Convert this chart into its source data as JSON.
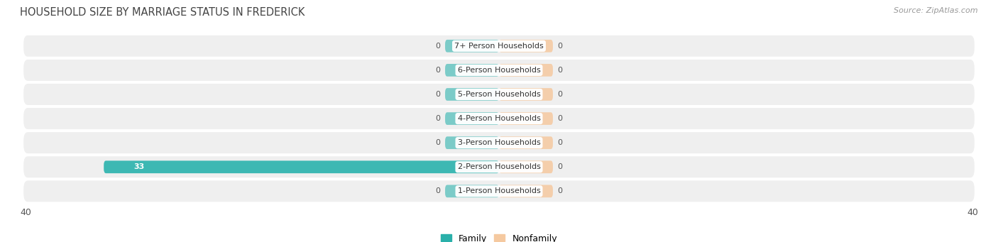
{
  "title": "HOUSEHOLD SIZE BY MARRIAGE STATUS IN FREDERICK",
  "source": "Source: ZipAtlas.com",
  "categories": [
    "7+ Person Households",
    "6-Person Households",
    "5-Person Households",
    "4-Person Households",
    "3-Person Households",
    "2-Person Households",
    "1-Person Households"
  ],
  "family_values": [
    0,
    0,
    0,
    0,
    0,
    33,
    0
  ],
  "nonfamily_values": [
    0,
    0,
    0,
    0,
    0,
    0,
    0
  ],
  "family_color": "#3db8b3",
  "nonfamily_color": "#f5c9a0",
  "row_bg_color": "#efefef",
  "row_bg_color_alt": "#e8e8e8",
  "xlim": 40,
  "stub_size": 4.5,
  "label_color_on_bar": "#ffffff",
  "label_color_outside": "#555555",
  "title_color": "#444444",
  "source_color": "#999999",
  "axis_label_color": "#555555",
  "bar_height": 0.52,
  "legend_family_color": "#2ab0aa",
  "legend_nonfamily_color": "#f5c9a0"
}
